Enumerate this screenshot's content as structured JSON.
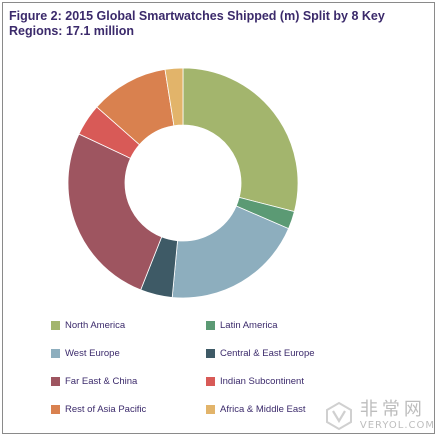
{
  "chart_data": {
    "type": "pie",
    "variant": "donut",
    "title_lines": [
      "Figure 2: 2015 Global Smartwatches Shipped (m) Split by 8 Key",
      "Regions: 17.1 million"
    ],
    "unit": "%",
    "slices": [
      {
        "label": "North America",
        "value": 29.0,
        "color": "#a3b56d"
      },
      {
        "label": "Latin America",
        "value": 2.5,
        "color": "#5b9a74"
      },
      {
        "label": "West Europe",
        "value": 20.0,
        "color": "#8daebe"
      },
      {
        "label": "Central & East Europe",
        "value": 4.5,
        "color": "#3e5a66"
      },
      {
        "label": "Far East & China",
        "value": 26.0,
        "color": "#9e5560"
      },
      {
        "label": "Indian Subcontinent",
        "value": 4.5,
        "color": "#d85a57"
      },
      {
        "label": "Rest of Asia Pacific",
        "value": 11.0,
        "color": "#d9814f"
      },
      {
        "label": "Africa & Middle East",
        "value": 2.5,
        "color": "#e2b46a"
      }
    ],
    "legend_position": "bottom",
    "legend_columns": 2
  },
  "watermark": {
    "cn": "非常网",
    "en": "VERYOL.COM"
  }
}
